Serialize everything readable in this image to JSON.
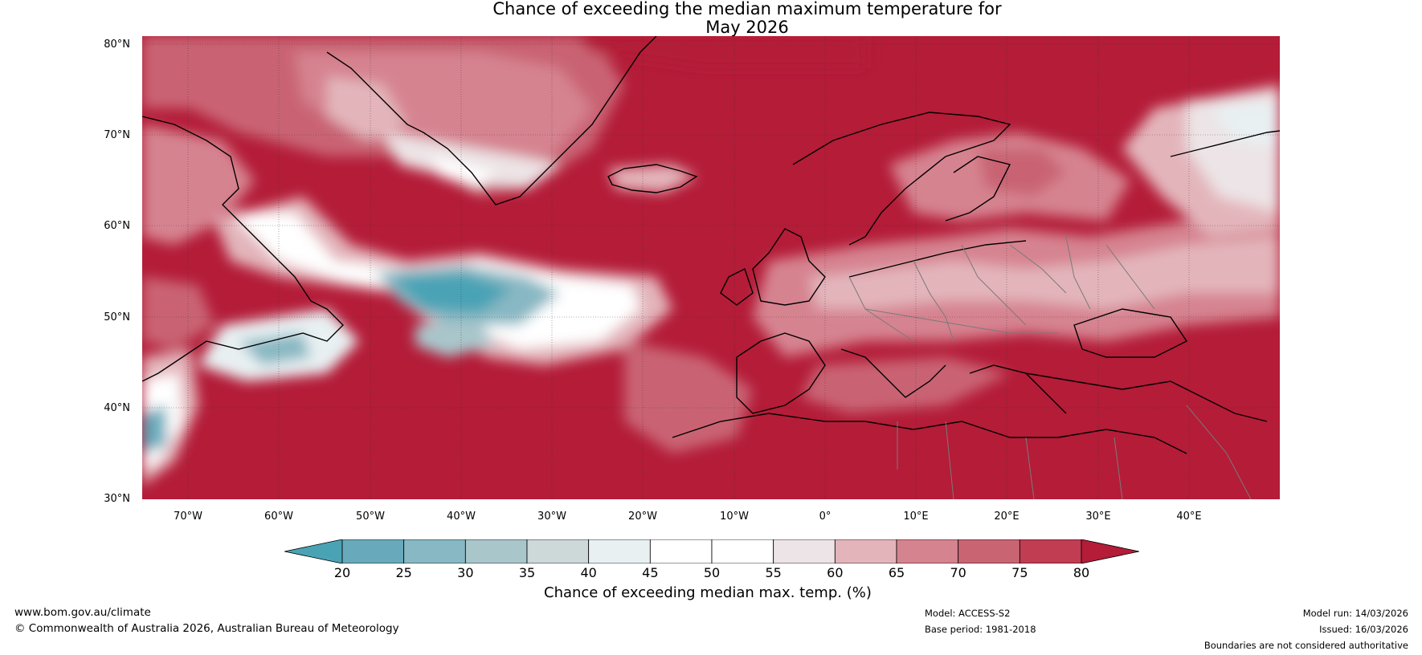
{
  "title": {
    "line1": "Chance of exceeding the median maximum temperature for",
    "line2": "May 2026"
  },
  "map": {
    "lat_labels": [
      "80°N",
      "70°N",
      "60°N",
      "50°N",
      "40°N",
      "30°N"
    ],
    "lon_labels": [
      "70°W",
      "60°W",
      "50°W",
      "40°W",
      "30°W",
      "20°W",
      "10°W",
      "0°",
      "10°E",
      "20°E",
      "30°E",
      "40°E"
    ]
  },
  "colorbar": {
    "ticks": [
      "20",
      "25",
      "30",
      "35",
      "40",
      "45",
      "50",
      "55",
      "60",
      "65",
      "70",
      "75",
      "80"
    ],
    "label": "Chance of exceeding median max. temp. (%)",
    "colors": [
      "#4aa3b5",
      "#68aabb",
      "#88b8c3",
      "#a9c6cb",
      "#cdd8d9",
      "#e8f0f2",
      "#ffffff",
      "#ffffff",
      "#ece4e6",
      "#e3b5bb",
      "#d68390",
      "#c96473",
      "#c03d52",
      "#b41c38"
    ]
  },
  "footer": {
    "website": "www.bom.gov.au/climate",
    "copyright": "© Commonwealth of Australia 2026, Australian Bureau of Meteorology",
    "model": "Model: ACCESS-S2",
    "base_period": "Base period: 1981-2018",
    "model_run": "Model run: 14/03/2026",
    "issued": "Issued: 16/03/2026",
    "disclaimer": "Boundaries are not considered authoritative"
  }
}
